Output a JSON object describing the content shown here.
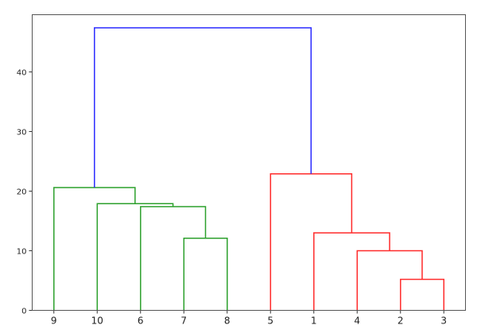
{
  "chart_data": {
    "type": "dendrogram",
    "title": "",
    "xlabel": "",
    "ylabel": "",
    "ylim": [
      0,
      49.6
    ],
    "yticks": [
      0,
      10,
      20,
      30,
      40
    ],
    "grid": false,
    "leaf_labels": [
      "9",
      "10",
      "6",
      "7",
      "8",
      "5",
      "1",
      "4",
      "2",
      "3"
    ],
    "links": [
      {
        "icoord": [
          35,
          35,
          45,
          45
        ],
        "dcoord": [
          0,
          12.1,
          12.1,
          0
        ],
        "color": "#2ca02c"
      },
      {
        "icoord": [
          25,
          25,
          40,
          40
        ],
        "dcoord": [
          0,
          17.4,
          17.4,
          12.1
        ],
        "color": "#2ca02c"
      },
      {
        "icoord": [
          15,
          15,
          32.5,
          32.5
        ],
        "dcoord": [
          0,
          17.9,
          17.9,
          17.4
        ],
        "color": "#2ca02c"
      },
      {
        "icoord": [
          5,
          5,
          23.75,
          23.75
        ],
        "dcoord": [
          0,
          20.6,
          20.6,
          17.9
        ],
        "color": "#2ca02c"
      },
      {
        "icoord": [
          85,
          85,
          95,
          95
        ],
        "dcoord": [
          0,
          5.2,
          5.2,
          0
        ],
        "color": "#ff2a2a"
      },
      {
        "icoord": [
          75,
          75,
          90,
          90
        ],
        "dcoord": [
          0,
          10.0,
          10.0,
          5.2
        ],
        "color": "#ff2a2a"
      },
      {
        "icoord": [
          65,
          65,
          82.5,
          82.5
        ],
        "dcoord": [
          0,
          13.0,
          13.0,
          10.0
        ],
        "color": "#ff2a2a"
      },
      {
        "icoord": [
          55,
          55,
          73.75,
          73.75
        ],
        "dcoord": [
          0,
          22.9,
          22.9,
          13.0
        ],
        "color": "#ff2a2a"
      },
      {
        "icoord": [
          14.375,
          14.375,
          64.375,
          64.375
        ],
        "dcoord": [
          20.6,
          47.4,
          47.4,
          22.9
        ],
        "color": "#2a2aff"
      }
    ]
  }
}
